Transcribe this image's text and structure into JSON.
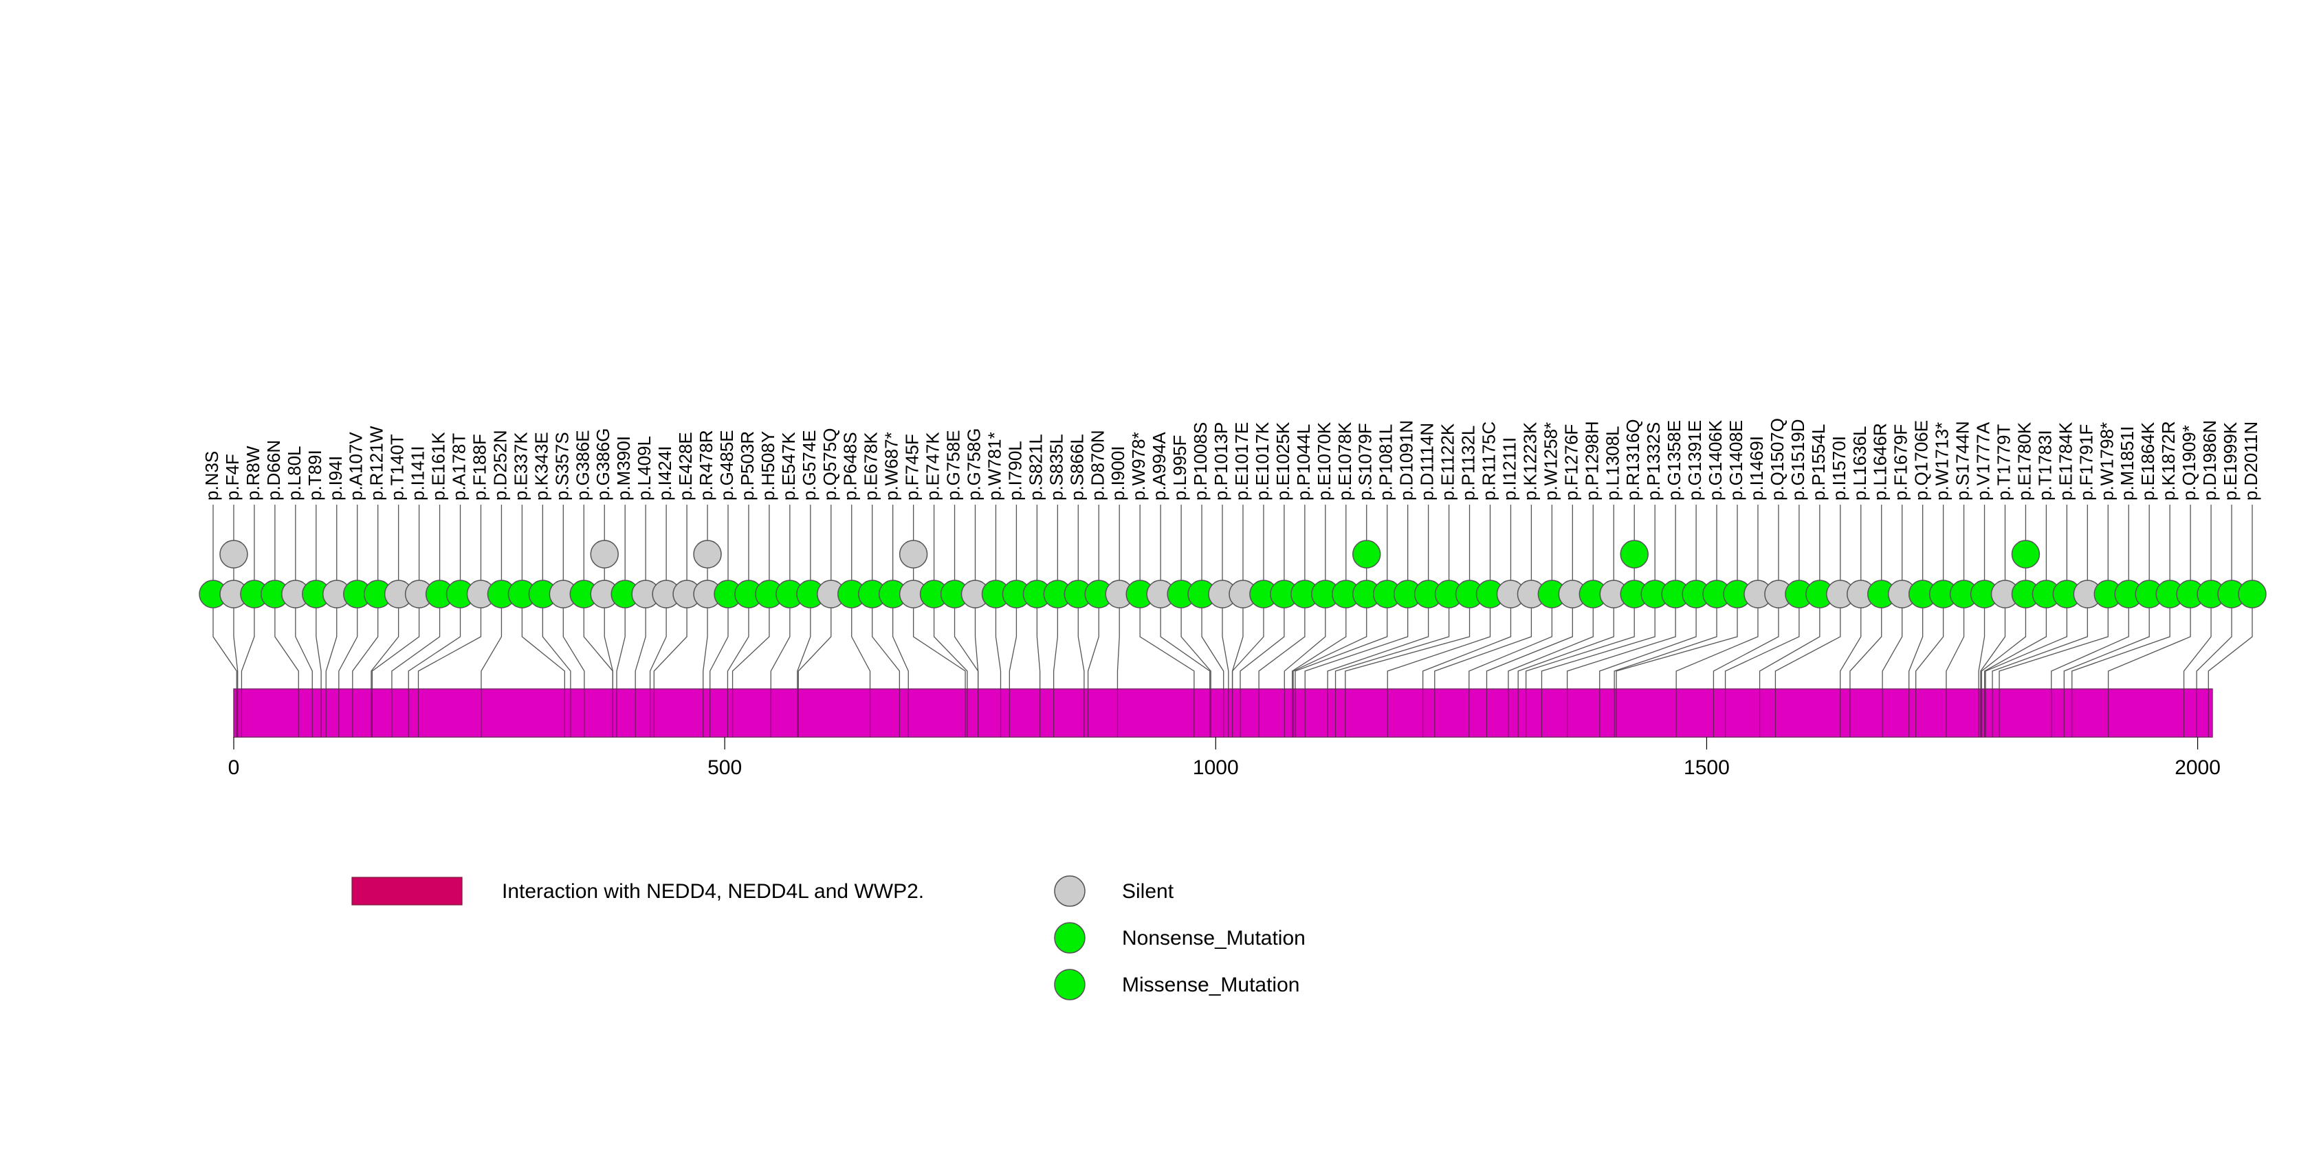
{
  "chart_data": {
    "type": "lollipop",
    "protein_length": 2015,
    "x_axis": {
      "range": [
        0,
        2015
      ],
      "ticks": [
        0,
        500,
        1000,
        1500,
        2000
      ]
    },
    "domain": {
      "name": "Interaction with NEDD4, NEDD4L and WWP2.",
      "start": 0,
      "end": 2015,
      "color": "#e000c0"
    },
    "legend": [
      {
        "label": "Interaction with NEDD4, NEDD4L and WWP2.",
        "kind": "box",
        "color": "#d00060"
      },
      {
        "label": "Silent",
        "kind": "circle",
        "color": "#cccccc"
      },
      {
        "label": "Nonsense_Mutation",
        "kind": "circle",
        "color": "#00ee00"
      },
      {
        "label": "Missense_Mutation",
        "kind": "circle",
        "color": "#00ee00"
      }
    ],
    "colors": {
      "silent": "#cccccc",
      "mutation": "#00ee00",
      "stroke": "#555555"
    },
    "mutations": [
      {
        "label": "p.N3S",
        "pos": 3,
        "type": "missense",
        "count": 1
      },
      {
        "label": "p.F4F",
        "pos": 4,
        "type": "silent",
        "count": 2
      },
      {
        "label": "p.R8W",
        "pos": 8,
        "type": "missense",
        "count": 1
      },
      {
        "label": "p.D66N",
        "pos": 66,
        "type": "missense",
        "count": 1
      },
      {
        "label": "p.L80L",
        "pos": 80,
        "type": "silent",
        "count": 1
      },
      {
        "label": "p.T89I",
        "pos": 89,
        "type": "missense",
        "count": 1
      },
      {
        "label": "p.I94I",
        "pos": 94,
        "type": "silent",
        "count": 1
      },
      {
        "label": "p.A107V",
        "pos": 107,
        "type": "missense",
        "count": 1
      },
      {
        "label": "p.R121W",
        "pos": 121,
        "type": "missense",
        "count": 1
      },
      {
        "label": "p.T140T",
        "pos": 140,
        "type": "silent",
        "count": 1
      },
      {
        "label": "p.I141I",
        "pos": 141,
        "type": "silent",
        "count": 1
      },
      {
        "label": "p.E161K",
        "pos": 161,
        "type": "missense",
        "count": 1
      },
      {
        "label": "p.A178T",
        "pos": 178,
        "type": "missense",
        "count": 1
      },
      {
        "label": "p.F188F",
        "pos": 188,
        "type": "silent",
        "count": 1
      },
      {
        "label": "p.D252N",
        "pos": 252,
        "type": "missense",
        "count": 1
      },
      {
        "label": "p.E337K",
        "pos": 337,
        "type": "missense",
        "count": 1
      },
      {
        "label": "p.K343E",
        "pos": 343,
        "type": "missense",
        "count": 1
      },
      {
        "label": "p.S357S",
        "pos": 357,
        "type": "silent",
        "count": 1
      },
      {
        "label": "p.G386E",
        "pos": 386,
        "type": "missense",
        "count": 1
      },
      {
        "label": "p.G386G",
        "pos": 386,
        "type": "silent",
        "count": 2
      },
      {
        "label": "p.M390I",
        "pos": 390,
        "type": "missense",
        "count": 1
      },
      {
        "label": "p.L409L",
        "pos": 409,
        "type": "silent",
        "count": 1
      },
      {
        "label": "p.I424I",
        "pos": 424,
        "type": "silent",
        "count": 1
      },
      {
        "label": "p.E428E",
        "pos": 428,
        "type": "silent",
        "count": 1
      },
      {
        "label": "p.R478R",
        "pos": 478,
        "type": "silent",
        "count": 2
      },
      {
        "label": "p.G485E",
        "pos": 485,
        "type": "missense",
        "count": 1
      },
      {
        "label": "p.P503R",
        "pos": 503,
        "type": "missense",
        "count": 1
      },
      {
        "label": "p.H508Y",
        "pos": 508,
        "type": "missense",
        "count": 1
      },
      {
        "label": "p.E547K",
        "pos": 547,
        "type": "missense",
        "count": 1
      },
      {
        "label": "p.G574E",
        "pos": 574,
        "type": "missense",
        "count": 1
      },
      {
        "label": "p.Q575Q",
        "pos": 575,
        "type": "silent",
        "count": 1
      },
      {
        "label": "p.P648S",
        "pos": 648,
        "type": "missense",
        "count": 1
      },
      {
        "label": "p.E678K",
        "pos": 678,
        "type": "missense",
        "count": 1
      },
      {
        "label": "p.W687*",
        "pos": 687,
        "type": "nonsense",
        "count": 1
      },
      {
        "label": "p.F745F",
        "pos": 745,
        "type": "silent",
        "count": 2
      },
      {
        "label": "p.E747K",
        "pos": 747,
        "type": "missense",
        "count": 1
      },
      {
        "label": "p.G758E",
        "pos": 758,
        "type": "missense",
        "count": 1
      },
      {
        "label": "p.G758G",
        "pos": 758,
        "type": "silent",
        "count": 1
      },
      {
        "label": "p.W781*",
        "pos": 781,
        "type": "nonsense",
        "count": 1
      },
      {
        "label": "p.I790L",
        "pos": 790,
        "type": "missense",
        "count": 1
      },
      {
        "label": "p.S821L",
        "pos": 821,
        "type": "missense",
        "count": 1
      },
      {
        "label": "p.S835L",
        "pos": 835,
        "type": "missense",
        "count": 1
      },
      {
        "label": "p.S866L",
        "pos": 866,
        "type": "missense",
        "count": 1
      },
      {
        "label": "p.D870N",
        "pos": 870,
        "type": "missense",
        "count": 1
      },
      {
        "label": "p.I900I",
        "pos": 900,
        "type": "silent",
        "count": 1
      },
      {
        "label": "p.W978*",
        "pos": 978,
        "type": "nonsense",
        "count": 1
      },
      {
        "label": "p.A994A",
        "pos": 994,
        "type": "silent",
        "count": 1
      },
      {
        "label": "p.L995F",
        "pos": 995,
        "type": "missense",
        "count": 1
      },
      {
        "label": "p.P1008S",
        "pos": 1008,
        "type": "missense",
        "count": 1
      },
      {
        "label": "p.P1013P",
        "pos": 1013,
        "type": "silent",
        "count": 1
      },
      {
        "label": "p.E1017E",
        "pos": 1017,
        "type": "silent",
        "count": 1
      },
      {
        "label": "p.E1017K",
        "pos": 1017,
        "type": "missense",
        "count": 1
      },
      {
        "label": "p.E1025K",
        "pos": 1025,
        "type": "missense",
        "count": 1
      },
      {
        "label": "p.P1044L",
        "pos": 1044,
        "type": "missense",
        "count": 1
      },
      {
        "label": "p.E1070K",
        "pos": 1070,
        "type": "missense",
        "count": 1
      },
      {
        "label": "p.E1078K",
        "pos": 1078,
        "type": "missense",
        "count": 1
      },
      {
        "label": "p.S1079F",
        "pos": 1079,
        "type": "missense",
        "count": 2
      },
      {
        "label": "p.P1081L",
        "pos": 1081,
        "type": "missense",
        "count": 1
      },
      {
        "label": "p.D1091N",
        "pos": 1091,
        "type": "missense",
        "count": 1
      },
      {
        "label": "p.D1114N",
        "pos": 1114,
        "type": "missense",
        "count": 1
      },
      {
        "label": "p.E1122K",
        "pos": 1122,
        "type": "missense",
        "count": 1
      },
      {
        "label": "p.P1132L",
        "pos": 1132,
        "type": "missense",
        "count": 1
      },
      {
        "label": "p.R1175C",
        "pos": 1175,
        "type": "missense",
        "count": 1
      },
      {
        "label": "p.I1211I",
        "pos": 1211,
        "type": "silent",
        "count": 1
      },
      {
        "label": "p.K1223K",
        "pos": 1223,
        "type": "silent",
        "count": 1
      },
      {
        "label": "p.W1258*",
        "pos": 1258,
        "type": "nonsense",
        "count": 1
      },
      {
        "label": "p.F1276F",
        "pos": 1276,
        "type": "silent",
        "count": 1
      },
      {
        "label": "p.P1298H",
        "pos": 1298,
        "type": "missense",
        "count": 1
      },
      {
        "label": "p.L1308L",
        "pos": 1308,
        "type": "silent",
        "count": 1
      },
      {
        "label": "p.R1316Q",
        "pos": 1316,
        "type": "missense",
        "count": 2
      },
      {
        "label": "p.P1332S",
        "pos": 1332,
        "type": "missense",
        "count": 1
      },
      {
        "label": "p.G1358E",
        "pos": 1358,
        "type": "missense",
        "count": 1
      },
      {
        "label": "p.G1391E",
        "pos": 1391,
        "type": "missense",
        "count": 1
      },
      {
        "label": "p.G1406K",
        "pos": 1406,
        "type": "missense",
        "count": 1
      },
      {
        "label": "p.G1408E",
        "pos": 1408,
        "type": "missense",
        "count": 1
      },
      {
        "label": "p.I1469I",
        "pos": 1469,
        "type": "silent",
        "count": 1
      },
      {
        "label": "p.Q1507Q",
        "pos": 1507,
        "type": "silent",
        "count": 1
      },
      {
        "label": "p.G1519D",
        "pos": 1519,
        "type": "missense",
        "count": 1
      },
      {
        "label": "p.P1554L",
        "pos": 1554,
        "type": "missense",
        "count": 1
      },
      {
        "label": "p.I1570I",
        "pos": 1570,
        "type": "silent",
        "count": 1
      },
      {
        "label": "p.L1636L",
        "pos": 1636,
        "type": "silent",
        "count": 1
      },
      {
        "label": "p.L1646R",
        "pos": 1646,
        "type": "missense",
        "count": 1
      },
      {
        "label": "p.F1679F",
        "pos": 1679,
        "type": "silent",
        "count": 1
      },
      {
        "label": "p.Q1706E",
        "pos": 1706,
        "type": "missense",
        "count": 1
      },
      {
        "label": "p.W1713*",
        "pos": 1713,
        "type": "nonsense",
        "count": 1
      },
      {
        "label": "p.S1744N",
        "pos": 1744,
        "type": "missense",
        "count": 1
      },
      {
        "label": "p.V1777A",
        "pos": 1777,
        "type": "missense",
        "count": 1
      },
      {
        "label": "p.T1779T",
        "pos": 1779,
        "type": "silent",
        "count": 1
      },
      {
        "label": "p.E1780K",
        "pos": 1780,
        "type": "missense",
        "count": 2
      },
      {
        "label": "p.T1783I",
        "pos": 1783,
        "type": "missense",
        "count": 1
      },
      {
        "label": "p.E1784K",
        "pos": 1784,
        "type": "missense",
        "count": 1
      },
      {
        "label": "p.F1791F",
        "pos": 1791,
        "type": "silent",
        "count": 1
      },
      {
        "label": "p.W1798*",
        "pos": 1798,
        "type": "nonsense",
        "count": 1
      },
      {
        "label": "p.M1851I",
        "pos": 1851,
        "type": "missense",
        "count": 1
      },
      {
        "label": "p.E1864K",
        "pos": 1864,
        "type": "missense",
        "count": 1
      },
      {
        "label": "p.K1872R",
        "pos": 1872,
        "type": "missense",
        "count": 1
      },
      {
        "label": "p.Q1909*",
        "pos": 1909,
        "type": "nonsense",
        "count": 1
      },
      {
        "label": "p.D1986N",
        "pos": 1986,
        "type": "missense",
        "count": 1
      },
      {
        "label": "p.E1999K",
        "pos": 1999,
        "type": "missense",
        "count": 1
      },
      {
        "label": "p.D2011N",
        "pos": 2011,
        "type": "missense",
        "count": 1
      }
    ]
  }
}
